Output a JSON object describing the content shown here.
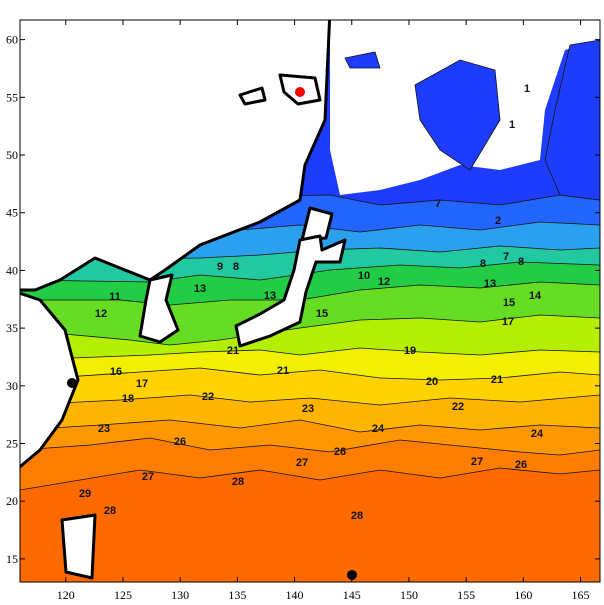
{
  "map": {
    "type": "contour-map",
    "xlim": [
      116,
      166.7
    ],
    "ylim": [
      13,
      61.7
    ],
    "xticks": [
      120,
      125,
      130,
      135,
      140,
      145,
      150,
      155,
      160,
      165
    ],
    "yticks": [
      15,
      20,
      25,
      30,
      35,
      40,
      45,
      50,
      55,
      60
    ],
    "contour_labels": [
      "1",
      "1",
      "7",
      "2",
      "8",
      "7",
      "8",
      "9",
      "8",
      "10",
      "12",
      "13",
      "14",
      "15",
      "17",
      "12",
      "11",
      "13",
      "13",
      "15",
      "19",
      "16",
      "18",
      "17",
      "21",
      "21",
      "20",
      "21",
      "22",
      "22",
      "23",
      "23",
      "24",
      "24",
      "26",
      "26",
      "26",
      "27",
      "27",
      "27",
      "28",
      "28",
      "28",
      "29"
    ]
  }
}
